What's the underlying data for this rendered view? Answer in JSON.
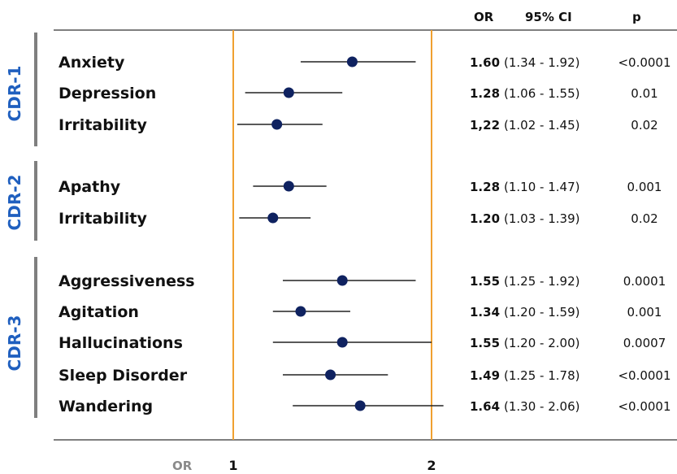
{
  "chart_data": {
    "type": "forest",
    "header": {
      "or": "OR",
      "ci": "95% CI",
      "p": "p"
    },
    "x_axis_label": "OR",
    "x_ticks": [
      1,
      2
    ],
    "xlim": [
      0.96,
      2.08
    ],
    "reference_lines": [
      1,
      2
    ],
    "groups": [
      {
        "name": "CDR-1",
        "rows": [
          {
            "label": "Anxiety",
            "or": 1.6,
            "or_text": "1.60",
            "ci_low": 1.34,
            "ci_high": 1.92,
            "ci_text": "(1.34 - 1.92)",
            "p": "<0.0001"
          },
          {
            "label": "Depression",
            "or": 1.28,
            "or_text": "1.28",
            "ci_low": 1.06,
            "ci_high": 1.55,
            "ci_text": "(1.06 - 1.55)",
            "p": "0.01"
          },
          {
            "label": "Irritability",
            "or": 1.22,
            "or_text": "1,22",
            "ci_low": 1.02,
            "ci_high": 1.45,
            "ci_text": "(1.02 - 1.45)",
            "p": "0.02"
          }
        ]
      },
      {
        "name": "CDR-2",
        "rows": [
          {
            "label": "Apathy",
            "or": 1.28,
            "or_text": "1.28",
            "ci_low": 1.1,
            "ci_high": 1.47,
            "ci_text": "(1.10 - 1.47)",
            "p": "0.001"
          },
          {
            "label": "Irritability",
            "or": 1.2,
            "or_text": "1.20",
            "ci_low": 1.03,
            "ci_high": 1.39,
            "ci_text": "(1.03 - 1.39)",
            "p": "0.02"
          }
        ]
      },
      {
        "name": "CDR-3",
        "rows": [
          {
            "label": "Aggressiveness",
            "or": 1.55,
            "or_text": "1.55",
            "ci_low": 1.25,
            "ci_high": 1.92,
            "ci_text": "(1.25 - 1.92)",
            "p": "0.0001"
          },
          {
            "label": "Agitation",
            "or": 1.34,
            "or_text": "1.34",
            "ci_low": 1.2,
            "ci_high": 1.59,
            "ci_text": "(1.20 - 1.59)",
            "p": "0.001"
          },
          {
            "label": "Hallucinations",
            "or": 1.55,
            "or_text": "1.55",
            "ci_low": 1.2,
            "ci_high": 2.0,
            "ci_text": "(1.20 - 2.00)",
            "p": "0.0007"
          },
          {
            "label": "Sleep Disorder",
            "or": 1.49,
            "or_text": "1.49",
            "ci_low": 1.25,
            "ci_high": 1.78,
            "ci_text": "(1.25 - 1.78)",
            "p": "<0.0001"
          },
          {
            "label": "Wandering",
            "or": 1.64,
            "or_text": "1.64",
            "ci_low": 1.3,
            "ci_high": 2.06,
            "ci_text": "(1.30 - 2.06)",
            "p": "<0.0001"
          }
        ]
      }
    ],
    "colors": {
      "marker": "#0f2260",
      "ci_line": "#222222",
      "ref_line": "#f0a030",
      "group_label": "#1f5fbf",
      "frame": "#7f7f7f"
    }
  }
}
